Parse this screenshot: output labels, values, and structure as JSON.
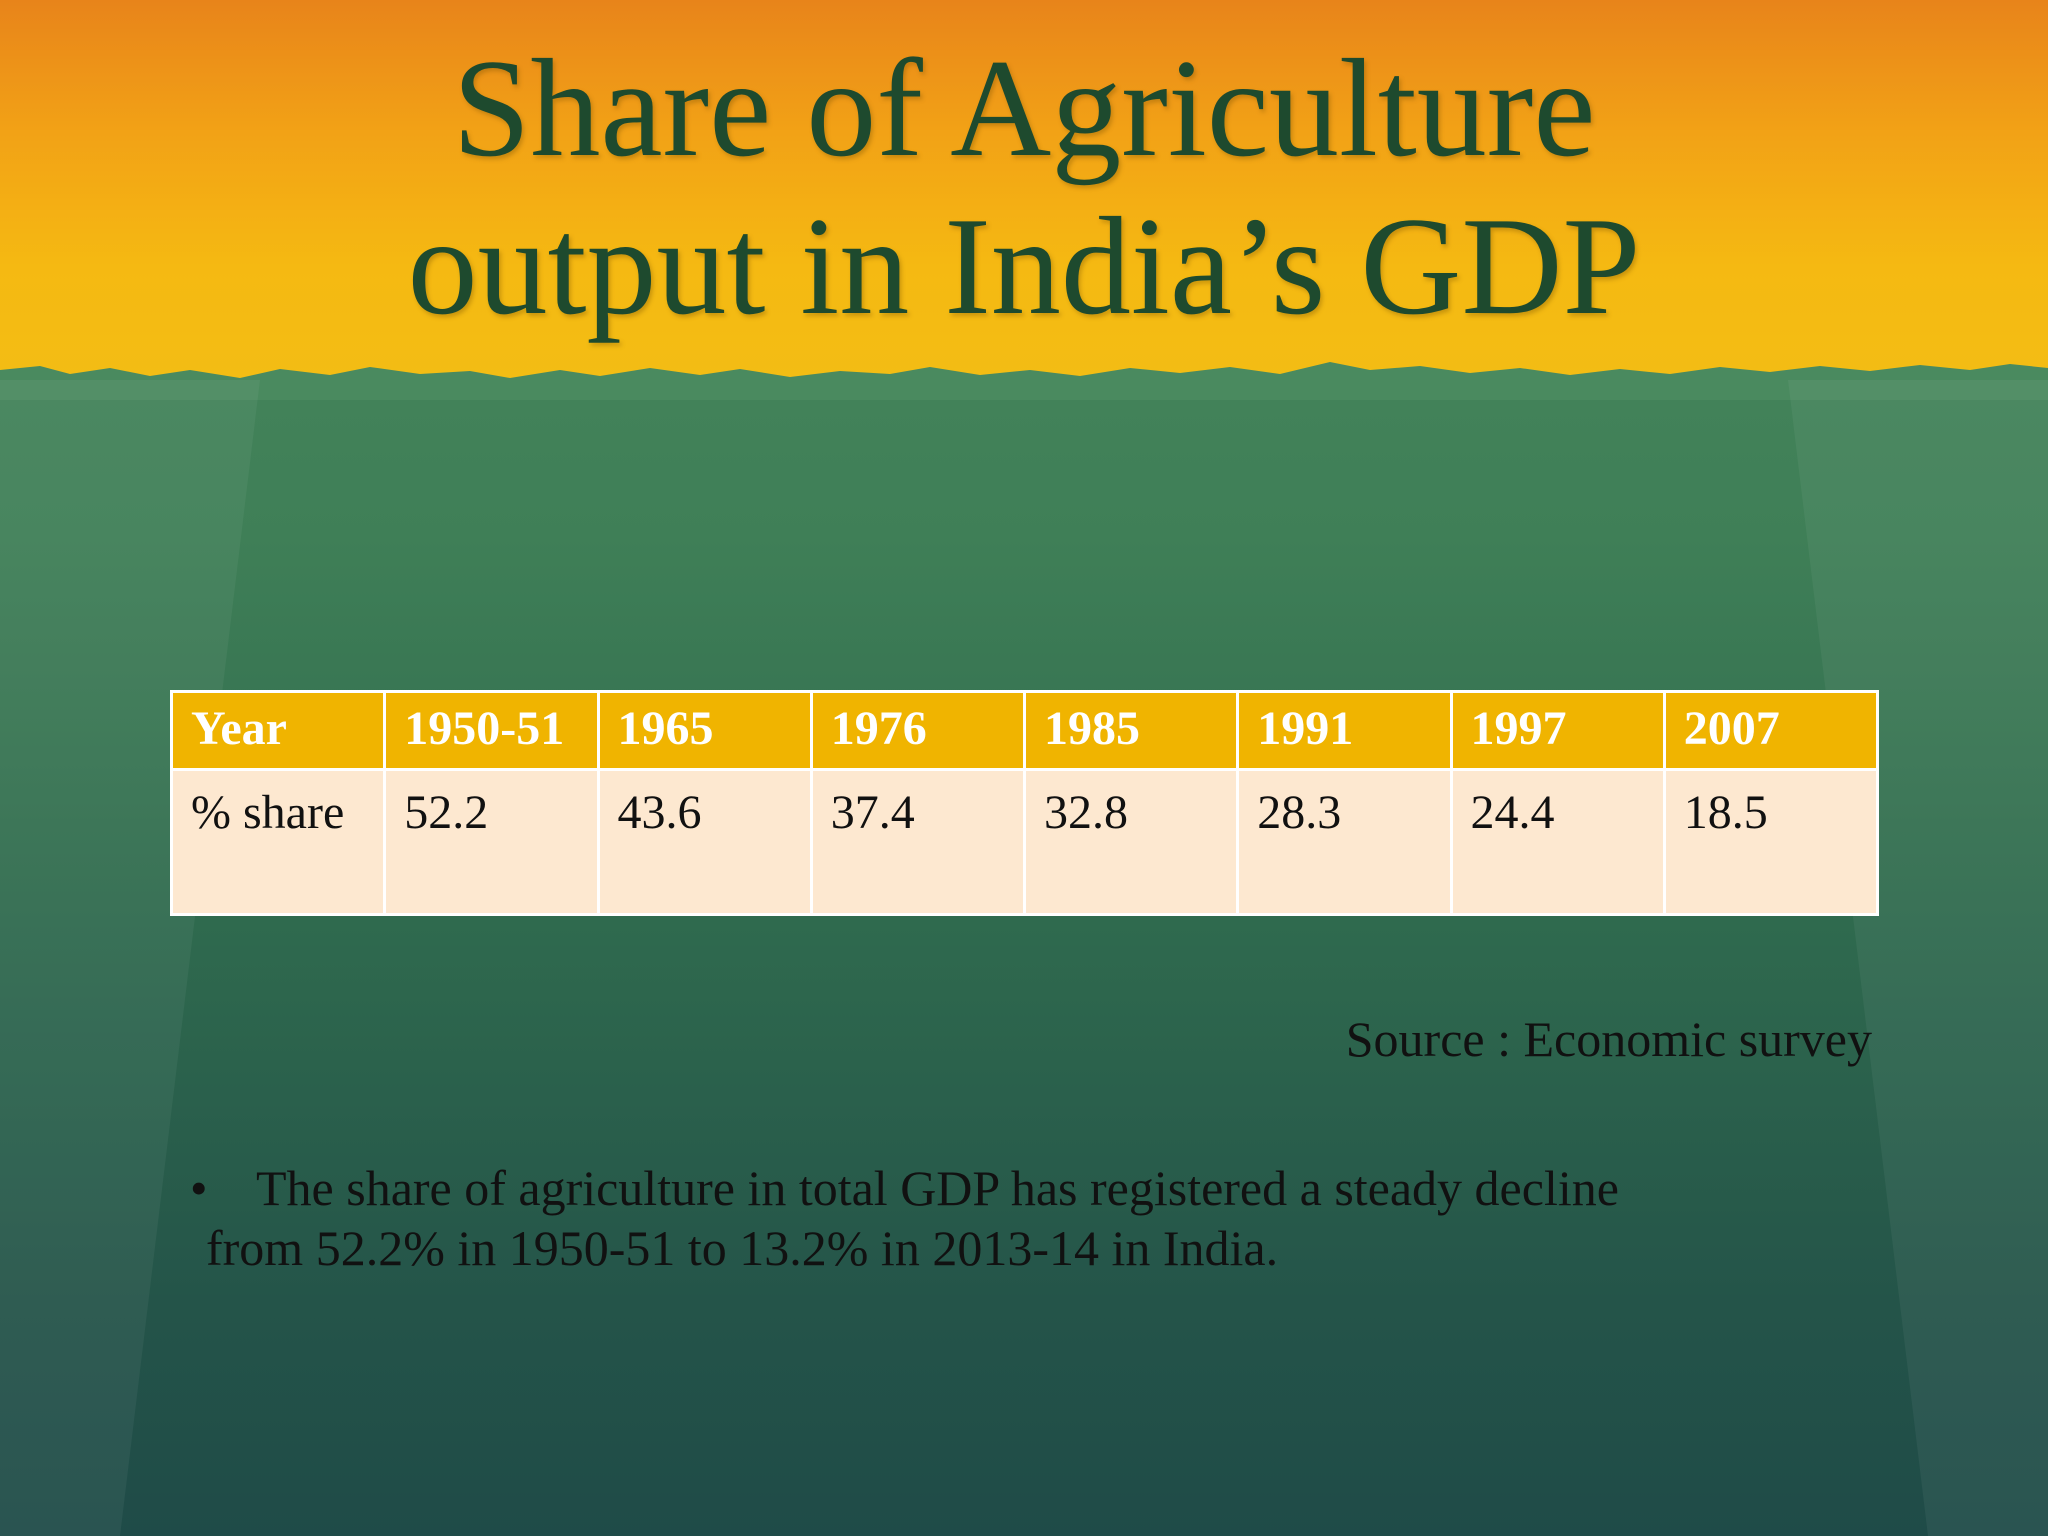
{
  "slide": {
    "title_line1": "Share of Agriculture",
    "title_line2": "output in India’s GDP"
  },
  "table": {
    "headers": [
      "Year",
      "1950-51",
      "1965",
      "1976",
      "1985",
      "1991",
      "1997",
      "2007"
    ],
    "row": [
      "% share",
      "52.2",
      "43.6",
      "37.4",
      "32.8",
      "28.3",
      "24.4",
      "18.5"
    ]
  },
  "source": "Source : Economic survey",
  "bullet": {
    "marker": "•",
    "line1": "The share of agriculture in total GDP has registered a steady decline",
    "line2": "from 52.2% in 1950-51 to 13.2% in 2013-14 in India."
  },
  "colors": {
    "header_band": "#f5b912",
    "title_text": "#1e4a2e",
    "table_header": "#f0b400",
    "table_body": "#fde8d0",
    "background": "#2f6a4e"
  }
}
